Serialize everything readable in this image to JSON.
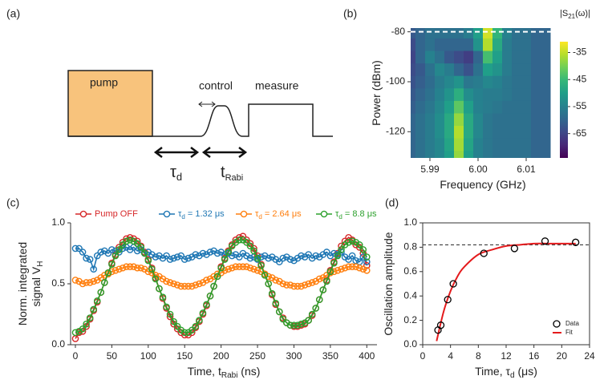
{
  "panel_labels": [
    "(a)",
    "(b)",
    "(c)",
    "(d)"
  ],
  "diagram": {
    "pump": "pump",
    "control": "control",
    "measure": "measure",
    "tau_d": {
      "text": "τ",
      "sub": "d"
    },
    "t_rabi": {
      "text": "t",
      "sub": "Rabi"
    }
  },
  "chart_data": [
    {
      "type": "heatmap",
      "x": [
        5.986,
        5.988,
        5.99,
        5.992,
        5.994,
        5.996,
        5.998,
        6.0,
        6.002,
        6.004,
        6.006,
        6.008,
        6.01,
        6.012,
        6.014
      ],
      "y": [
        -130,
        -125,
        -120,
        -115,
        -110,
        -105,
        -100,
        -95,
        -90,
        -85,
        -80
      ],
      "z": [
        [
          -60,
          -58,
          -56,
          -54,
          -50,
          -38,
          -50,
          -55,
          -57,
          -58,
          -58,
          -58,
          -58,
          -60,
          -60
        ],
        [
          -60,
          -58,
          -56,
          -54,
          -49,
          -37,
          -49,
          -55,
          -57,
          -58,
          -58,
          -58,
          -58,
          -60,
          -60
        ],
        [
          -60,
          -58,
          -56,
          -53,
          -48,
          -36,
          -48,
          -54,
          -57,
          -58,
          -58,
          -58,
          -58,
          -60,
          -60
        ],
        [
          -60,
          -58,
          -56,
          -53,
          -48,
          -38,
          -48,
          -54,
          -57,
          -58,
          -58,
          -58,
          -58,
          -60,
          -60
        ],
        [
          -61,
          -59,
          -57,
          -54,
          -50,
          -42,
          -50,
          -55,
          -56,
          -57,
          -58,
          -58,
          -58,
          -60,
          -60
        ],
        [
          -62,
          -60,
          -58,
          -55,
          -52,
          -47,
          -53,
          -55,
          -56,
          -56,
          -57,
          -58,
          -58,
          -60,
          -60
        ],
        [
          -63,
          -61,
          -59,
          -56,
          -54,
          -52,
          -57,
          -56,
          -54,
          -55,
          -57,
          -58,
          -58,
          -60,
          -60
        ],
        [
          -64,
          -62,
          -58,
          -54,
          -56,
          -60,
          -63,
          -58,
          -50,
          -52,
          -56,
          -58,
          -58,
          -60,
          -60
        ],
        [
          -65,
          -60,
          -55,
          -58,
          -62,
          -64,
          -66,
          -60,
          -44,
          -50,
          -56,
          -58,
          -58,
          -60,
          -60
        ],
        [
          -64,
          -60,
          -58,
          -60,
          -60,
          -60,
          -60,
          -52,
          -36,
          -48,
          -56,
          -58,
          -58,
          -60,
          -60
        ],
        [
          -62,
          -60,
          -58,
          -58,
          -58,
          -58,
          -56,
          -50,
          -34,
          -46,
          -55,
          -58,
          -58,
          -60,
          -60
        ]
      ],
      "colormap": "viridis",
      "clim": [
        -74,
        -31
      ],
      "colorbar_ticks": [
        -35,
        -45,
        -55,
        -65
      ],
      "colorbar_label": {
        "text": "|S",
        "sub": "21",
        "tail": "(ω)|"
      },
      "xlabel": {
        "text": "Frequency (GHz)"
      },
      "ylabel": {
        "text": "Power (dBm)"
      },
      "xlim": [
        5.986,
        6.016
      ],
      "ylim": [
        -130.5,
        -78.5
      ],
      "xticks": [
        5.99,
        {
          "value": 6,
          "label": "6.00"
        },
        6.01
      ],
      "yticks": [
        -80,
        -100,
        -120
      ],
      "hline": -80
    },
    {
      "type": "line",
      "x": [
        0,
        5,
        10,
        15,
        20,
        25,
        30,
        35,
        40,
        45,
        50,
        55,
        60,
        65,
        70,
        75,
        80,
        85,
        90,
        95,
        100,
        105,
        110,
        115,
        120,
        125,
        130,
        135,
        140,
        145,
        150,
        155,
        160,
        165,
        170,
        175,
        180,
        185,
        190,
        195,
        200,
        205,
        210,
        215,
        220,
        225,
        230,
        235,
        240,
        245,
        250,
        255,
        260,
        265,
        270,
        275,
        280,
        285,
        290,
        295,
        300,
        305,
        310,
        315,
        320,
        325,
        330,
        335,
        340,
        345,
        350,
        355,
        360,
        365,
        370,
        375,
        380,
        385,
        390,
        395,
        400
      ],
      "series": [
        {
          "name": {
            "text": "Pump OFF"
          },
          "color": "#d62728",
          "values": [
            0.05,
            0.1,
            0.11,
            0.15,
            0.21,
            0.28,
            0.35,
            0.43,
            0.51,
            0.59,
            0.67,
            0.74,
            0.8,
            0.84,
            0.87,
            0.88,
            0.87,
            0.85,
            0.81,
            0.76,
            0.7,
            0.63,
            0.55,
            0.46,
            0.38,
            0.3,
            0.23,
            0.17,
            0.13,
            0.1,
            0.08,
            0.08,
            0.1,
            0.14,
            0.19,
            0.25,
            0.32,
            0.4,
            0.48,
            0.56,
            0.64,
            0.71,
            0.77,
            0.82,
            0.86,
            0.88,
            0.89,
            0.86,
            0.83,
            0.79,
            0.73,
            0.66,
            0.58,
            0.5,
            0.41,
            0.33,
            0.27,
            0.22,
            0.18,
            0.16,
            0.15,
            0.15,
            0.16,
            0.17,
            0.2,
            0.24,
            0.3,
            0.37,
            0.45,
            0.53,
            0.61,
            0.68,
            0.75,
            0.81,
            0.85,
            0.88,
            0.86,
            0.82,
            0.8,
            0.75,
            0.65
          ]
        },
        {
          "name": {
            "text": "τ",
            "sub": "d",
            "tail": " = 1.32 μs"
          },
          "color": "#1f77b4",
          "values": [
            0.79,
            0.79,
            0.76,
            0.71,
            0.7,
            0.62,
            0.73,
            0.76,
            0.77,
            0.75,
            0.78,
            0.77,
            0.76,
            0.79,
            0.8,
            0.78,
            0.8,
            0.77,
            0.78,
            0.75,
            0.76,
            0.74,
            0.72,
            0.73,
            0.71,
            0.73,
            0.7,
            0.71,
            0.72,
            0.73,
            0.7,
            0.71,
            0.72,
            0.74,
            0.73,
            0.75,
            0.74,
            0.76,
            0.77,
            0.75,
            0.76,
            0.74,
            0.75,
            0.73,
            0.74,
            0.72,
            0.75,
            0.73,
            0.71,
            0.72,
            0.7,
            0.72,
            0.73,
            0.71,
            0.72,
            0.7,
            0.68,
            0.71,
            0.72,
            0.7,
            0.69,
            0.71,
            0.73,
            0.72,
            0.74,
            0.71,
            0.73,
            0.72,
            0.74,
            0.76,
            0.73,
            0.75,
            0.74,
            0.76,
            0.72,
            0.7,
            0.73,
            0.69,
            0.68,
            0.72,
            0.68
          ]
        },
        {
          "name": {
            "text": "τ",
            "sub": "d",
            "tail": " = 2.64 μs"
          },
          "color": "#ff7f0e",
          "values": [
            0.53,
            0.52,
            0.5,
            0.51,
            0.51,
            0.52,
            0.53,
            0.55,
            0.57,
            0.58,
            0.6,
            0.61,
            0.62,
            0.63,
            0.64,
            0.64,
            0.64,
            0.63,
            0.63,
            0.62,
            0.6,
            0.59,
            0.57,
            0.56,
            0.54,
            0.52,
            0.51,
            0.5,
            0.49,
            0.48,
            0.48,
            0.48,
            0.48,
            0.49,
            0.5,
            0.51,
            0.53,
            0.54,
            0.56,
            0.58,
            0.59,
            0.61,
            0.62,
            0.63,
            0.64,
            0.64,
            0.64,
            0.64,
            0.63,
            0.62,
            0.61,
            0.6,
            0.58,
            0.56,
            0.55,
            0.53,
            0.52,
            0.5,
            0.49,
            0.49,
            0.48,
            0.48,
            0.48,
            0.49,
            0.5,
            0.51,
            0.52,
            0.54,
            0.55,
            0.57,
            0.59,
            0.6,
            0.61,
            0.62,
            0.63,
            0.64,
            0.64,
            0.64,
            0.63,
            0.62,
            0.61
          ]
        },
        {
          "name": {
            "text": "τ",
            "sub": "d",
            "tail": " = 8.8 μs"
          },
          "color": "#2ca02c",
          "values": [
            0.1,
            0.11,
            0.13,
            0.17,
            0.22,
            0.29,
            0.36,
            0.43,
            0.51,
            0.59,
            0.66,
            0.73,
            0.78,
            0.82,
            0.85,
            0.86,
            0.85,
            0.83,
            0.8,
            0.75,
            0.69,
            0.62,
            0.54,
            0.46,
            0.39,
            0.31,
            0.25,
            0.19,
            0.15,
            0.12,
            0.1,
            0.1,
            0.12,
            0.15,
            0.2,
            0.26,
            0.33,
            0.4,
            0.48,
            0.56,
            0.63,
            0.7,
            0.76,
            0.81,
            0.84,
            0.86,
            0.86,
            0.84,
            0.81,
            0.77,
            0.71,
            0.65,
            0.57,
            0.5,
            0.42,
            0.34,
            0.27,
            0.21,
            0.18,
            0.16,
            0.16,
            0.16,
            0.17,
            0.18,
            0.2,
            0.25,
            0.3,
            0.37,
            0.45,
            0.52,
            0.6,
            0.67,
            0.73,
            0.78,
            0.82,
            0.84,
            0.85,
            0.84,
            0.82,
            0.78,
            0.72
          ]
        }
      ],
      "xlabel": {
        "text": "Time, t",
        "sub": "Rabi",
        "tail": " (ns)"
      },
      "ylabel": [
        {
          "text": "Norm. integrated"
        },
        {
          "text": "signal V",
          "sub": "H"
        }
      ],
      "xlim": [
        -6.6,
        414
      ],
      "ylim": [
        0,
        1
      ],
      "xticks": [
        0,
        50,
        100,
        150,
        200,
        250,
        300,
        350,
        400
      ],
      "yticks": [
        {
          "value": 0,
          "label": "0.0"
        },
        0.5,
        {
          "value": 1,
          "label": "1.0"
        }
      ],
      "legend": "upper center",
      "markers": true
    },
    {
      "type": "scatter",
      "series": [
        {
          "name": {
            "text": "Data"
          },
          "kind": "scatter",
          "color": "#000000",
          "x": [
            2.2,
            2.6,
            3.6,
            4.4,
            8.8,
            13.2,
            17.6,
            22
          ],
          "values": [
            0.12,
            0.16,
            0.37,
            0.5,
            0.75,
            0.79,
            0.85,
            0.84
          ]
        },
        {
          "name": {
            "text": "Fit"
          },
          "kind": "line",
          "color": "#e41a1c",
          "x": [
            2,
            3,
            4,
            5,
            6,
            8,
            10,
            12,
            14,
            16,
            18,
            20,
            22
          ],
          "values": [
            0.03,
            0.27,
            0.44,
            0.56,
            0.64,
            0.74,
            0.78,
            0.81,
            0.82,
            0.83,
            0.83,
            0.83,
            0.83
          ]
        }
      ],
      "xlabel": {
        "text": "Time, τ",
        "sub": "d",
        "tail": " (μs)"
      },
      "ylabel": [
        {
          "text": "Oscillation amplitude"
        }
      ],
      "xlim": [
        0,
        24
      ],
      "ylim": [
        0,
        1
      ],
      "xticks": [
        0,
        4,
        8,
        12,
        16,
        20,
        24
      ],
      "yticks": [
        {
          "value": 0,
          "label": "0.0"
        },
        0.2,
        0.4,
        0.6,
        0.8,
        {
          "value": 1,
          "label": "1.0"
        }
      ],
      "hline": 0.82,
      "legend": "lower right"
    }
  ]
}
